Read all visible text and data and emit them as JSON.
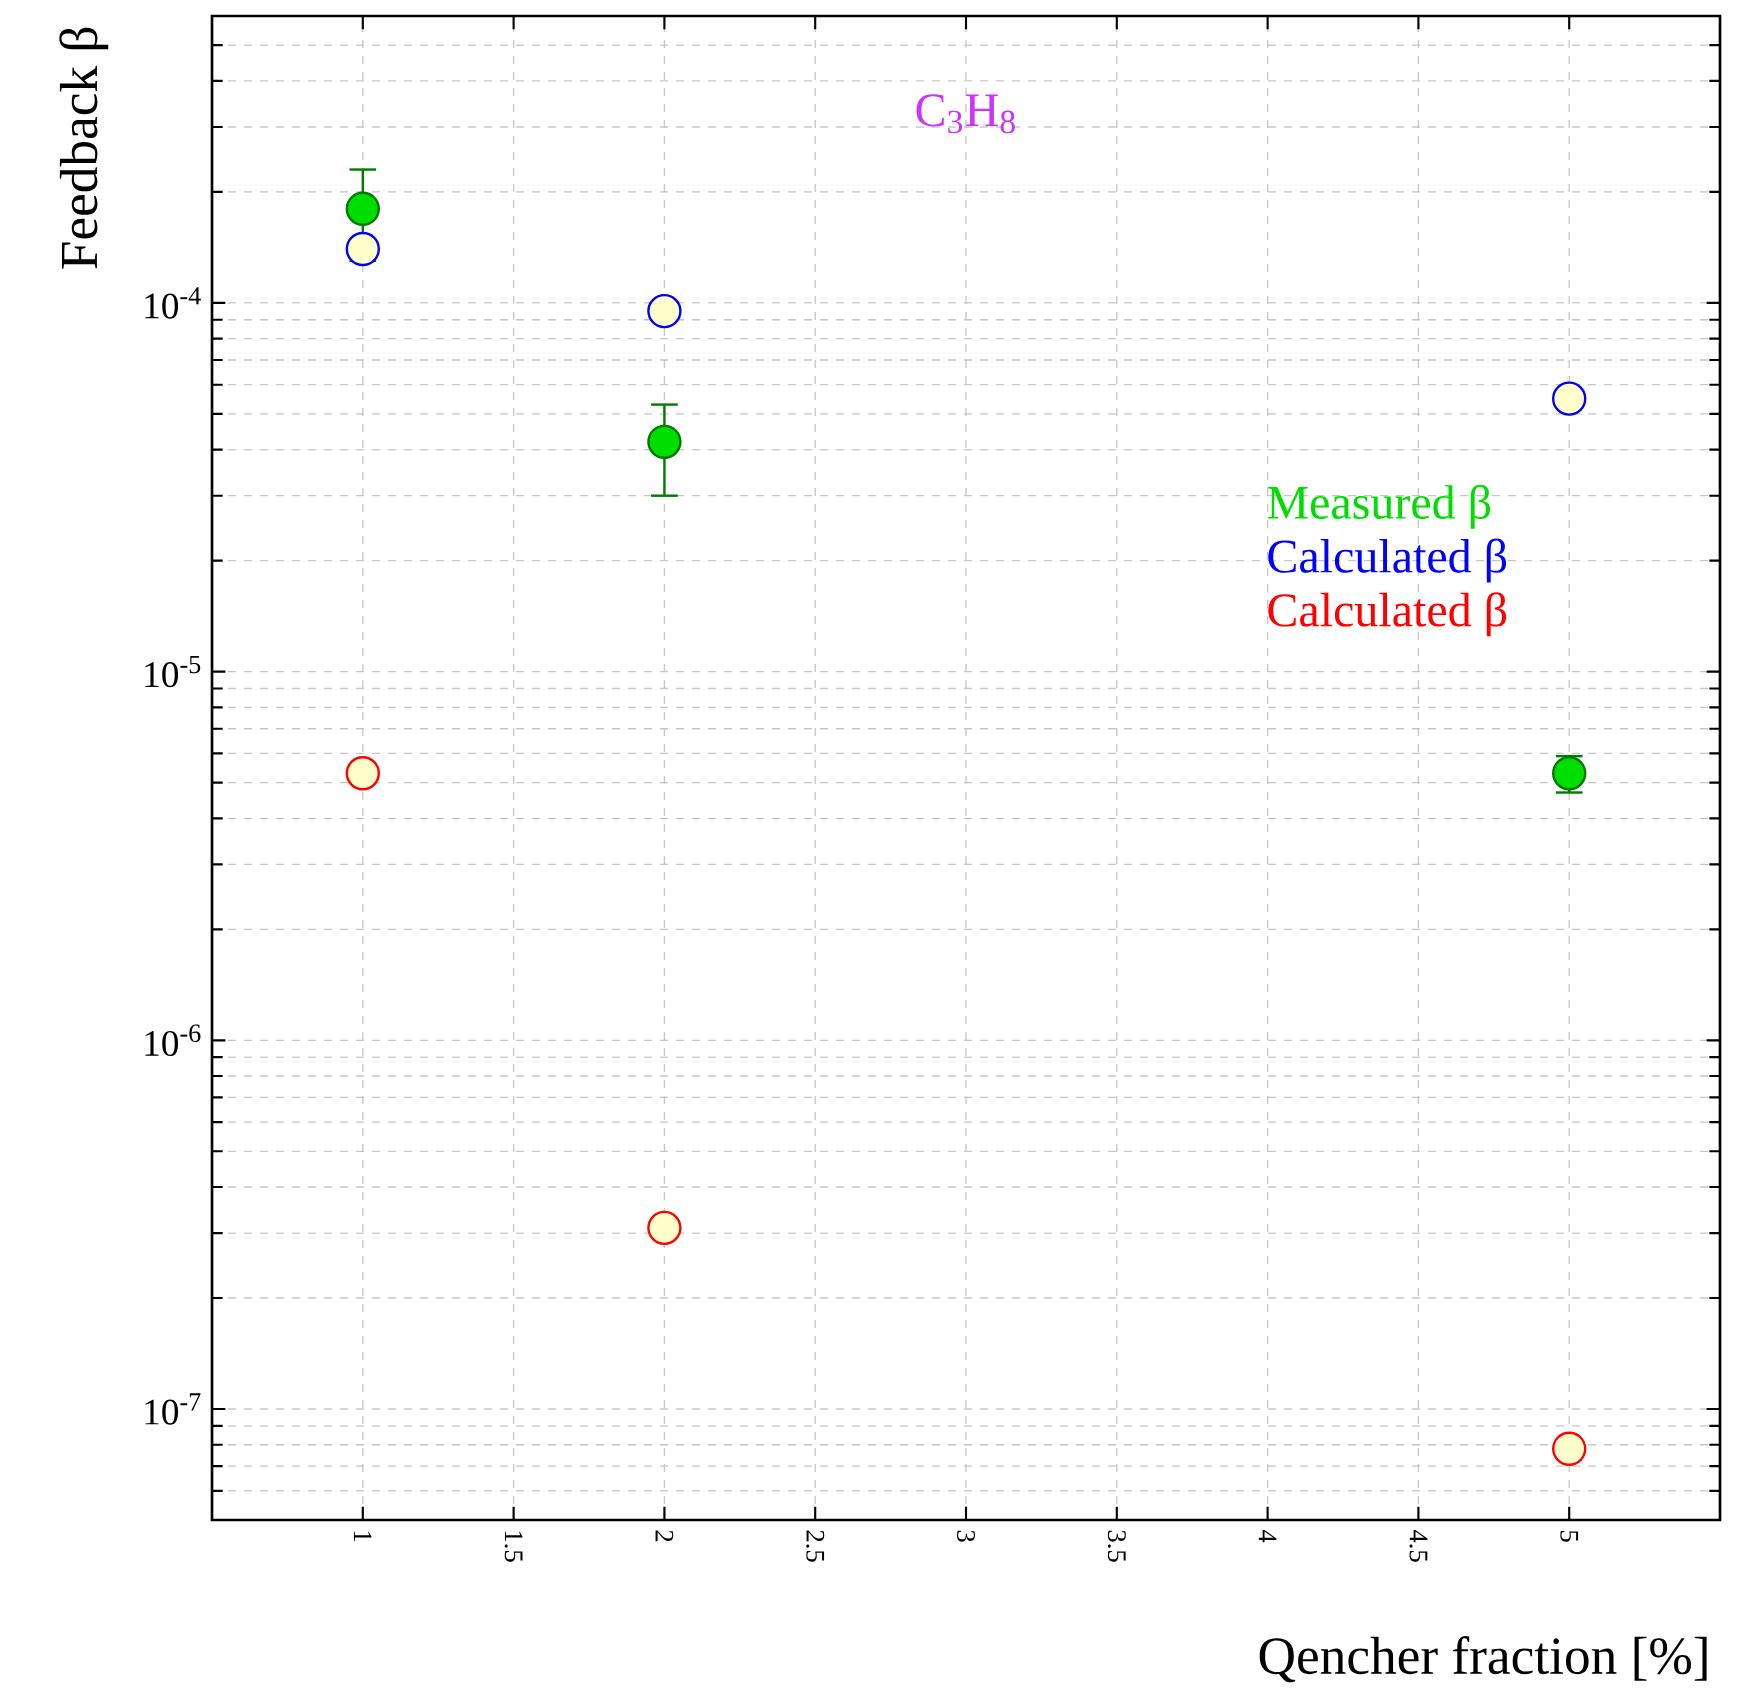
{
  "chart_data": {
    "type": "scatter",
    "xlabel": "Qencher fraction [%]",
    "ylabel": "Feedback β",
    "annotations": [
      "C$_{3}$H$_{8}$"
    ],
    "x": [
      1,
      2,
      5
    ],
    "series": [
      {
        "name": "Measured β",
        "color": "#00dd00",
        "values": [
          0.00018,
          4.2e-05,
          5.3e-06
        ],
        "errors": [
          [
            0.00013,
            0.00023
          ],
          [
            3e-05,
            5.3e-05
          ],
          [
            4.7e-06,
            5.9e-06
          ]
        ]
      },
      {
        "name": "Calculated β",
        "color": "#0000ff",
        "values": [
          0.00014,
          9.5e-05,
          5.5e-05
        ]
      },
      {
        "name": "Calculated β",
        "color": "#ff0000",
        "values": [
          5.3e-06,
          3.1e-07,
          7.8e-08
        ]
      }
    ],
    "log": "y",
    "xlim": [
      0.5,
      5.5
    ],
    "xticks": [
      1,
      1.5,
      2,
      2.5,
      3,
      3.5,
      4,
      4.5,
      5
    ],
    "ylim": [
      5e-08,
      0.0006
    ],
    "yticks": [
      {
        "value": 1e-07,
        "label": "10$^{-7}$"
      },
      {
        "value": 1e-06,
        "label": "10$^{-6}$"
      },
      {
        "value": 1e-05,
        "label": "10$^{-5}$"
      },
      {
        "value": 0.0001,
        "label": "10$^{-4}$"
      }
    ],
    "grid": true,
    "legend": "right",
    "marker": "circle"
  }
}
